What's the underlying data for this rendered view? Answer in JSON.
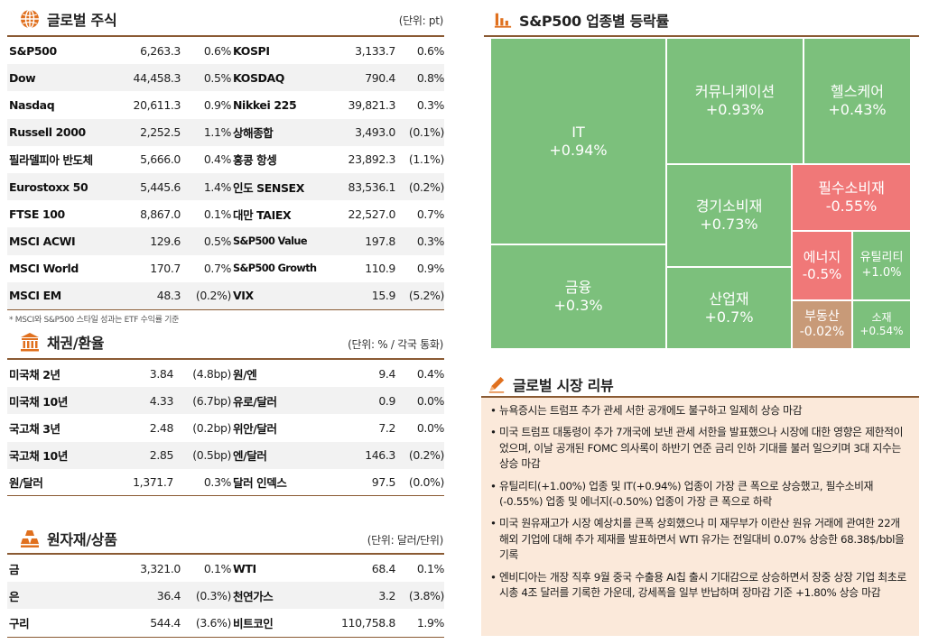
{
  "global_stocks": {
    "title": "글로벌 주식",
    "unit": "(단위: pt)",
    "rows": [
      {
        "l_name": "S&P500",
        "l_val": "6,263.3",
        "l_pct": "0.6%",
        "r_name": "KOSPI",
        "r_val": "3,133.7",
        "r_pct": "0.6%"
      },
      {
        "l_name": "Dow",
        "l_val": "44,458.3",
        "l_pct": "0.5%",
        "r_name": "KOSDAQ",
        "r_val": "790.4",
        "r_pct": "0.8%"
      },
      {
        "l_name": "Nasdaq",
        "l_val": "20,611.3",
        "l_pct": "0.9%",
        "r_name": "Nikkei 225",
        "r_val": "39,821.3",
        "r_pct": "0.3%"
      },
      {
        "l_name": "Russell 2000",
        "l_val": "2,252.5",
        "l_pct": "1.1%",
        "r_name": "상해종합",
        "r_val": "3,493.0",
        "r_pct": "(0.1%)"
      },
      {
        "l_name": "필라델피아 반도체",
        "l_val": "5,666.0",
        "l_pct": "0.4%",
        "r_name": "홍콩 항셍",
        "r_val": "23,892.3",
        "r_pct": "(1.1%)"
      },
      {
        "l_name": "Eurostoxx 50",
        "l_val": "5,445.6",
        "l_pct": "1.4%",
        "r_name": "인도 SENSEX",
        "r_val": "83,536.1",
        "r_pct": "(0.2%)"
      },
      {
        "l_name": "FTSE 100",
        "l_val": "8,867.0",
        "l_pct": "0.1%",
        "r_name": "대만 TAIEX",
        "r_val": "22,527.0",
        "r_pct": "0.7%"
      },
      {
        "l_name": "MSCI ACWI",
        "l_val": "129.6",
        "l_pct": "0.5%",
        "r_name": "S&P500 Value",
        "r_val": "197.8",
        "r_pct": "0.3%"
      },
      {
        "l_name": "MSCI World",
        "l_val": "170.7",
        "l_pct": "0.7%",
        "r_name": "S&P500 Growth",
        "r_val": "110.9",
        "r_pct": "0.9%"
      },
      {
        "l_name": "MSCI EM",
        "l_val": "48.3",
        "l_pct": "(0.2%)",
        "r_name": "VIX",
        "r_val": "15.9",
        "r_pct": "(5.2%)"
      }
    ],
    "footnote": "* MSCI와 S&P500 스타일 성과는 ETF 수익률 기준"
  },
  "bonds_fx": {
    "title": "채권/환율",
    "unit": "(단위: % / 각국 통화)",
    "rows": [
      {
        "l_name": "미국채 2년",
        "l_val": "3.84",
        "l_pct": "(4.8bp)",
        "r_name": "원/엔",
        "r_val": "9.4",
        "r_pct": "0.4%"
      },
      {
        "l_name": "미국채 10년",
        "l_val": "4.33",
        "l_pct": "(6.7bp)",
        "r_name": "유로/달러",
        "r_val": "0.9",
        "r_pct": "0.0%"
      },
      {
        "l_name": "국고채 3년",
        "l_val": "2.48",
        "l_pct": "(0.2bp)",
        "r_name": "위안/달러",
        "r_val": "7.2",
        "r_pct": "0.0%"
      },
      {
        "l_name": "국고채 10년",
        "l_val": "2.85",
        "l_pct": "(0.5bp)",
        "r_name": "엔/달러",
        "r_val": "146.3",
        "r_pct": "(0.2%)"
      },
      {
        "l_name": "원/달러",
        "l_val": "1,371.7",
        "l_pct": "0.3%",
        "r_name": "달러 인덱스",
        "r_val": "97.5",
        "r_pct": "(0.0%)"
      }
    ]
  },
  "commodities": {
    "title": "원자재/상품",
    "unit": "(단위: 달러/단위)",
    "rows": [
      {
        "l_name": "금",
        "l_val": "3,321.0",
        "l_pct": "0.1%",
        "r_name": "WTI",
        "r_val": "68.4",
        "r_pct": "0.1%"
      },
      {
        "l_name": "은",
        "l_val": "36.4",
        "l_pct": "(0.3%)",
        "r_name": "천연가스",
        "r_val": "3.2",
        "r_pct": "(3.8%)"
      },
      {
        "l_name": "구리",
        "l_val": "544.4",
        "l_pct": "(3.6%)",
        "r_name": "비트코인",
        "r_val": "110,758.8",
        "r_pct": "1.9%"
      }
    ]
  },
  "sector": {
    "title": "S&P500 업종별 등락률",
    "cells": [
      {
        "name": "IT",
        "value": "+0.94%",
        "color": "#7cc07c"
      },
      {
        "name": "금융",
        "value": "+0.3%",
        "color": "#7cc07c"
      },
      {
        "name": "커뮤니케이션",
        "value": "+0.93%",
        "color": "#7cc07c"
      },
      {
        "name": "헬스케어",
        "value": "+0.43%",
        "color": "#7cc07c"
      },
      {
        "name": "경기소비재",
        "value": "+0.73%",
        "color": "#7cc07c"
      },
      {
        "name": "필수소비재",
        "value": "-0.55%",
        "color": "#f07878"
      },
      {
        "name": "에너지",
        "value": "-0.5%",
        "color": "#f07878"
      },
      {
        "name": "유틸리티",
        "value": "+1.0%",
        "color": "#7cc07c"
      },
      {
        "name": "산업재",
        "value": "+0.7%",
        "color": "#7cc07c"
      },
      {
        "name": "부동산",
        "value": "-0.02%",
        "color": "#c89a78"
      },
      {
        "name": "소재",
        "value": "+0.54%",
        "color": "#7cc07c"
      }
    ]
  },
  "review": {
    "title": "글로벌 시장 리뷰",
    "items": [
      "뉴욕증시는 트럼프 추가 관세 서한 공개에도 불구하고 일제히 상승 마감",
      "미국 트럼프 대통령이 추가 7개국에 보낸 관세 서한을 발표했으나 시장에 대한 영향은 제한적이었으며, 이날 공개된 FOMC 의사록이 하반기 연준 금리 인하 기대를 불러 일으키며 3대 지수는 상승 마감",
      "유틸리티(+1.00%) 업종 및 IT(+0.94%) 업종이 가장 큰 폭으로 상승했고, 필수소비재(-0.55%) 업종 및 에너지(-0.50%) 업종이 가장 큰 폭으로 하락",
      "미국 원유재고가 시장 예상치를 큰폭 상회했으나 미 재무부가 이란산 원유 거래에 관여한 22개 해외 기업에 대해 추가 제재를 발표하면서 WTI 유가는 전일대비 0.07% 상승한 68.38$/bbl을 기록",
      "엔비디아는 개장 직후 9월 중국 수출용 AI칩 출시 기대감으로 상승하면서 장중 상장 기업 최초로 시총 4조 달러를 기록한 가운데, 강세폭을 일부 반납하며 장마감 기준 +1.80% 상승 마감"
    ]
  },
  "colors": {
    "accent": "#e0701e",
    "rule": "#8a5a33",
    "up": "#7cc07c",
    "down": "#f07878",
    "flat": "#c89a78",
    "review_bg": "#fbe9da"
  },
  "icons": {
    "global": "globe-icon",
    "bonds": "bank-icon",
    "commodities": "gold-bars-icon",
    "sector": "bar-chart-icon",
    "review": "pencil-icon"
  }
}
